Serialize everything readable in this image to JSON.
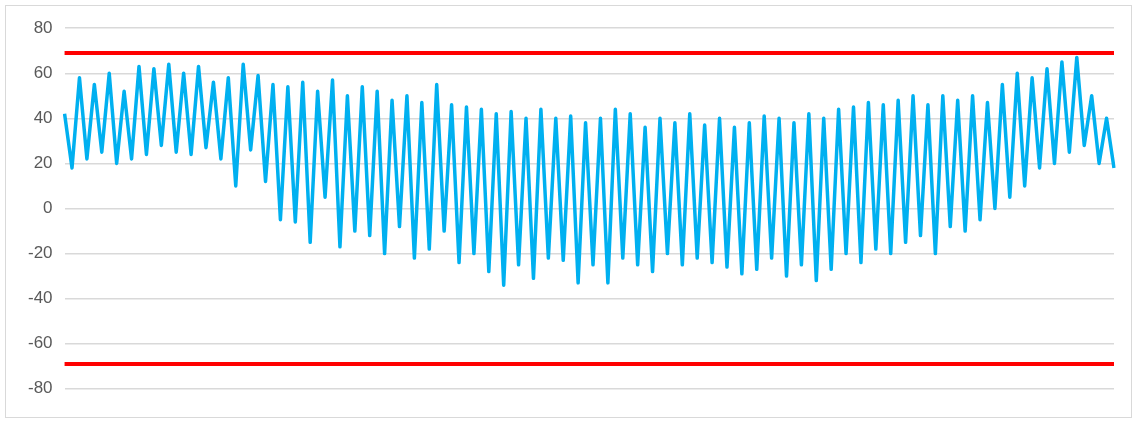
{
  "chart_data": {
    "type": "line",
    "categories": [
      null,
      null,
      null,
      null,
      null,
      null,
      null,
      null,
      null,
      null,
      null,
      null,
      null,
      null,
      null,
      null,
      null,
      null,
      null,
      null,
      null,
      null,
      null,
      null,
      null,
      null,
      null,
      null,
      null,
      null,
      null,
      null,
      null,
      null,
      null,
      null,
      null,
      null,
      null,
      null,
      null,
      null,
      null,
      null,
      null,
      null,
      null,
      null,
      null,
      null,
      null,
      null,
      null,
      null,
      null,
      null,
      null,
      null,
      null,
      null,
      null,
      null,
      null,
      null,
      null,
      null,
      null,
      null,
      null,
      null,
      null,
      null,
      null,
      null,
      null,
      null,
      null,
      null,
      null,
      null,
      null,
      null,
      null,
      null,
      null,
      null,
      null,
      null,
      null,
      null,
      null,
      null,
      null,
      null,
      null,
      null,
      null,
      null,
      null,
      null,
      null,
      null,
      null,
      null,
      null,
      null,
      null,
      null,
      null,
      null,
      null,
      null,
      null,
      null,
      null,
      null,
      null,
      null,
      null,
      null,
      null,
      null,
      null,
      null,
      null,
      null,
      null,
      null,
      null,
      null,
      null,
      null,
      null,
      null,
      null,
      null,
      null,
      null,
      null,
      null,
      null,
      null
    ],
    "series": [
      {
        "color": "#00b0f0",
        "values": [
          42,
          18,
          58,
          22,
          55,
          25,
          60,
          20,
          52,
          22,
          63,
          24,
          62,
          28,
          64,
          25,
          60,
          24,
          63,
          27,
          56,
          22,
          58,
          10,
          64,
          26,
          59,
          12,
          55,
          -5,
          54,
          -6,
          56,
          -15,
          52,
          5,
          57,
          -17,
          50,
          -10,
          54,
          -12,
          52,
          -20,
          48,
          -8,
          50,
          -22,
          47,
          -18,
          55,
          -10,
          46,
          -24,
          45,
          -20,
          44,
          -28,
          42,
          -34,
          43,
          -25,
          40,
          -31,
          44,
          -22,
          40,
          -23,
          41,
          -33,
          38,
          -25,
          40,
          -33,
          44,
          -22,
          42,
          -25,
          36,
          -28,
          40,
          -20,
          38,
          -25,
          42,
          -22,
          37,
          -24,
          40,
          -26,
          36,
          -29,
          38,
          -27,
          41,
          -22,
          40,
          -30,
          38,
          -25,
          42,
          -32,
          40,
          -27,
          44,
          -20,
          45,
          -24,
          47,
          -18,
          46,
          -20,
          48,
          -15,
          50,
          -12,
          46,
          -20,
          50,
          -8,
          48,
          -10,
          50,
          -5,
          47,
          0,
          55,
          5,
          60,
          10,
          58,
          18,
          62,
          20,
          65,
          25,
          67,
          28,
          50,
          20,
          40,
          18
        ]
      }
    ],
    "ylim": [
      -80,
      80
    ],
    "yticks": [
      -80,
      -60,
      -40,
      -20,
      0,
      20,
      40,
      60,
      80
    ],
    "grid": "y",
    "tick_labels": "y",
    "legend": false,
    "marker": "none",
    "line_style": "solid",
    "ref_lines": [
      {
        "axis": "y",
        "value": 69,
        "color": "#ff0000"
      },
      {
        "axis": "y",
        "value": -69,
        "color": "#ff0000"
      }
    ]
  }
}
